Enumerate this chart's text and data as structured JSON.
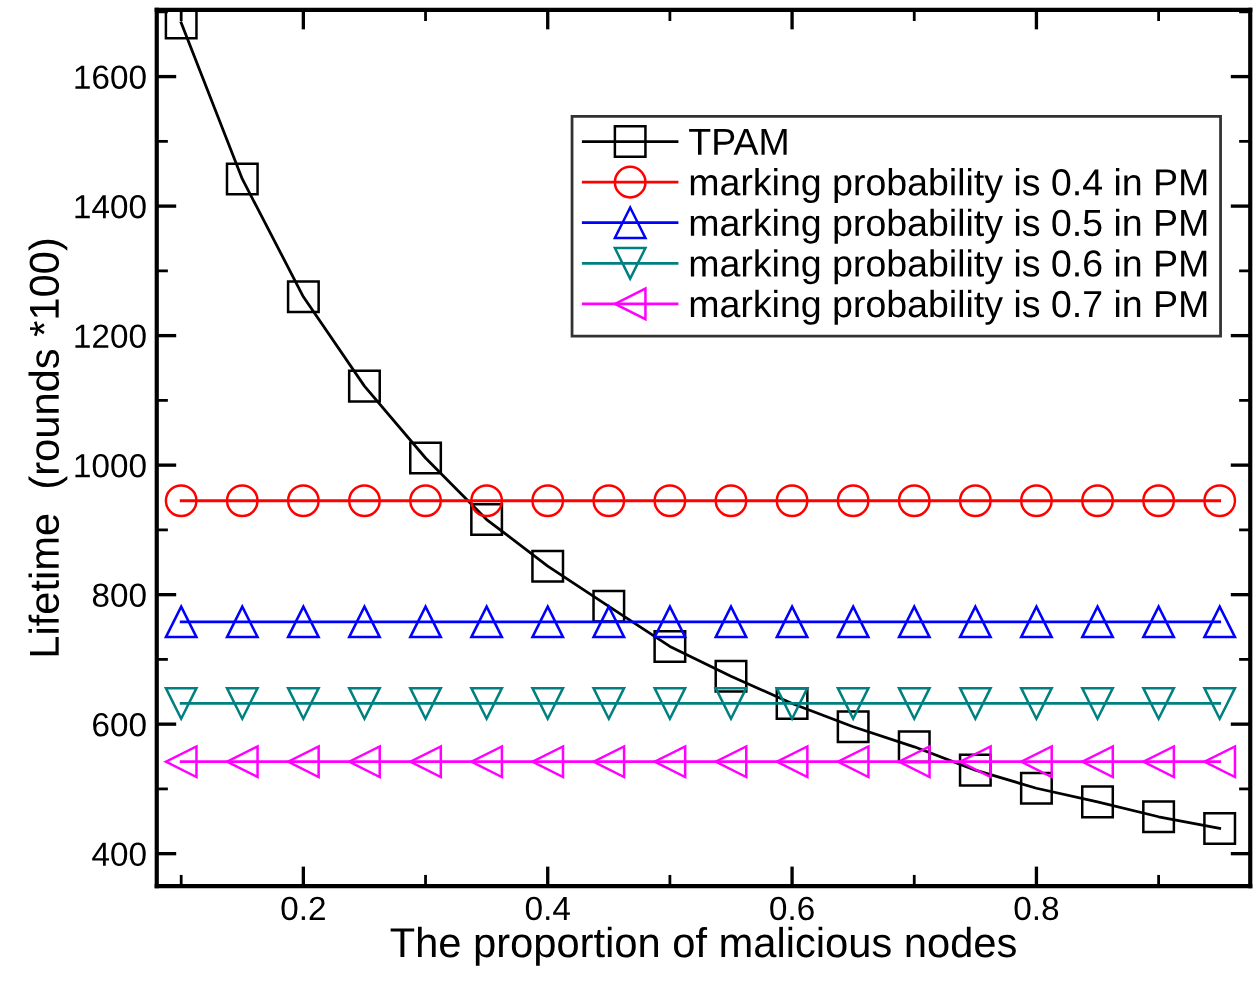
{
  "chart_data": {
    "type": "line",
    "xlabel": "The proportion of malicious nodes",
    "ylabel": "Lifetime  (rounds *100)",
    "x": [
      0.1,
      0.15,
      0.2,
      0.25,
      0.3,
      0.35,
      0.4,
      0.45,
      0.5,
      0.55,
      0.6,
      0.65,
      0.7,
      0.75,
      0.8,
      0.85,
      0.9,
      0.95
    ],
    "series": [
      {
        "name": "TPAM",
        "color": "#000000",
        "marker": "square",
        "values": [
          1683,
          1442,
          1260,
          1122,
          1011,
          916,
          844,
          782,
          720,
          674,
          632,
          596,
          565,
          529,
          501,
          480,
          457,
          439
        ]
      },
      {
        "name": "marking probability is 0.4 in PM",
        "color": "#ff0000",
        "marker": "circle",
        "values": [
          945,
          945,
          945,
          945,
          945,
          945,
          945,
          945,
          945,
          945,
          945,
          945,
          945,
          945,
          945,
          945,
          945,
          945
        ]
      },
      {
        "name": "marking probability is 0.5 in PM",
        "color": "#0000ff",
        "marker": "triangle",
        "values": [
          758,
          758,
          758,
          758,
          758,
          758,
          758,
          758,
          758,
          758,
          758,
          758,
          758,
          758,
          758,
          758,
          758,
          758
        ]
      },
      {
        "name": "marking probability is 0.6 in PM",
        "color": "#008080",
        "marker": "triangle_down",
        "values": [
          632,
          632,
          632,
          632,
          632,
          632,
          632,
          632,
          632,
          632,
          632,
          632,
          632,
          632,
          632,
          632,
          632,
          632
        ]
      },
      {
        "name": "marking probability is 0.7 in PM",
        "color": "#ff00ff",
        "marker": "triangle_left",
        "values": [
          542,
          542,
          542,
          542,
          542,
          542,
          542,
          542,
          542,
          542,
          542,
          542,
          542,
          542,
          542,
          542,
          542,
          542
        ]
      }
    ],
    "xlim": [
      0.08,
      0.975
    ],
    "xticks": [
      0.2,
      0.4,
      0.6,
      0.8
    ],
    "ylim": [
      350,
      1703
    ],
    "yticks": [
      400,
      600,
      800,
      1000,
      1200,
      1400,
      1600
    ],
    "grid": false,
    "legend": "top right",
    "line_style": "solid"
  }
}
